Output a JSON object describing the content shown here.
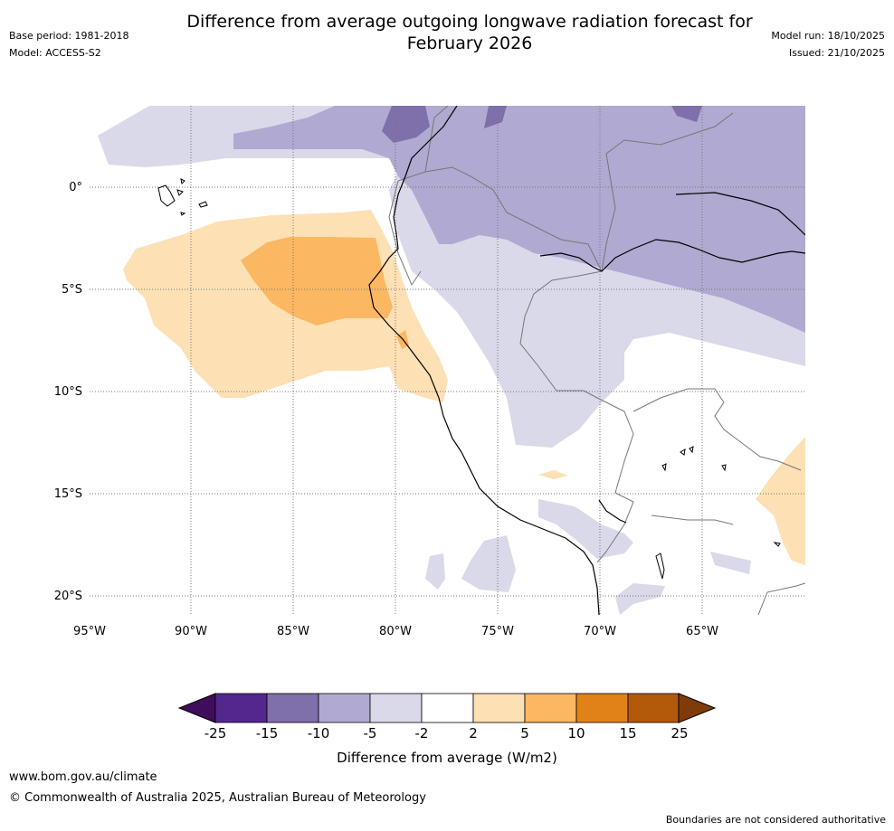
{
  "header": {
    "title_line1": "Difference from average outgoing longwave radiation forecast for",
    "title_line2": "February 2026",
    "base_period": "Base period: 1981-2018",
    "model": "Model: ACCESS-S2",
    "model_run": "Model run: 18/10/2025",
    "issued": "Issued: 21/10/2025"
  },
  "map": {
    "lat_labels": [
      "0°",
      "5°S",
      "10°S",
      "15°S",
      "20°S"
    ],
    "lon_labels": [
      "95°W",
      "90°W",
      "85°W",
      "80°W",
      "75°W",
      "70°W",
      "65°W"
    ]
  },
  "colorbar": {
    "ticks": [
      "-25",
      "-15",
      "-10",
      "-5",
      "-2",
      "2",
      "5",
      "10",
      "15",
      "25"
    ],
    "colors": [
      "#3f0d5c",
      "#54278f",
      "#7f6faa",
      "#b0a9d1",
      "#d9d9ea",
      "#ffffff",
      "#fde0b4",
      "#fbb761",
      "#e08218",
      "#b3590a",
      "#7f3b08"
    ],
    "label": "Difference from average (W/m2)"
  },
  "footer": {
    "url": "www.bom.gov.au/climate",
    "copyright": "© Commonwealth of Australia 2025, Australian Bureau of Meteorology",
    "disclaimer": "Boundaries are not considered authoritative"
  }
}
